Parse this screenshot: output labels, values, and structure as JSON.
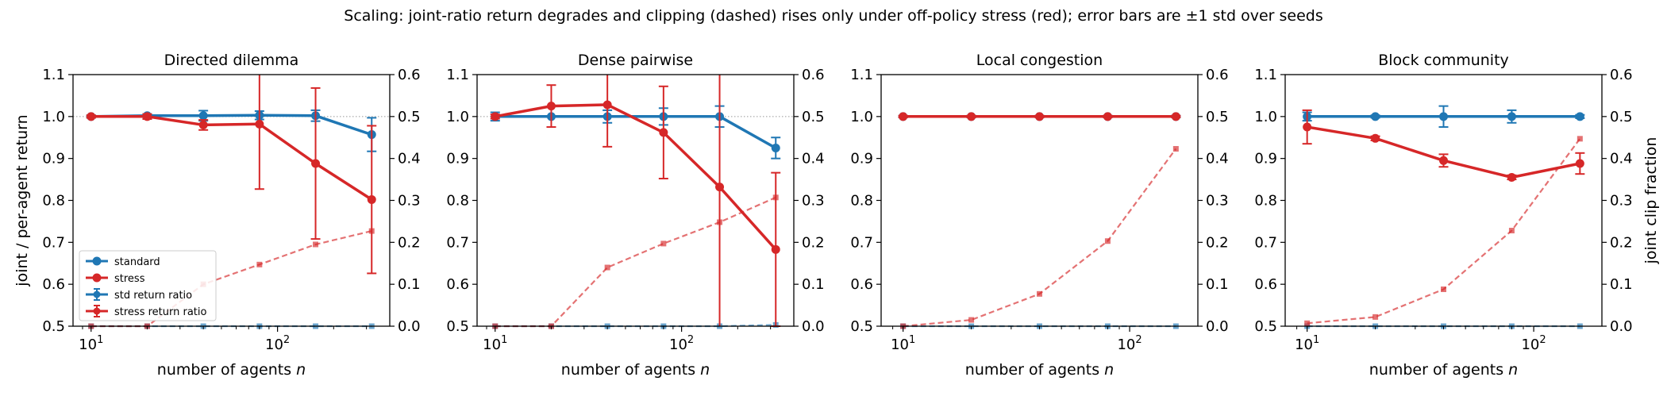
{
  "suptitle": "Scaling: joint-ratio return degrades and clipping (dashed) rises only under off-policy stress (red); error bars are ±1 std over seeds",
  "colors": {
    "standard": "#1f77b4",
    "stress": "#d62728"
  },
  "legend": {
    "placement": "lower-left (first panel)",
    "entries": [
      "standard",
      "stress",
      "std return ratio",
      "stress return ratio"
    ]
  },
  "axes_text": {
    "xlabel": "number of agents n",
    "ylabel_left": "joint / per-agent return",
    "ylabel_right": "joint clip fraction",
    "x_ticks": [
      "10^1",
      "10^2"
    ],
    "y_left_ticks": [
      "0.5",
      "0.6",
      "0.7",
      "0.8",
      "0.9",
      "1.0",
      "1.1"
    ],
    "y_right_ticks": [
      "0.0",
      "0.1",
      "0.2",
      "0.3",
      "0.4",
      "0.5",
      "0.6"
    ]
  },
  "chart_data": [
    {
      "type": "line",
      "title": "Directed dilemma",
      "xlabel": "number of agents n",
      "ylabel": "joint / per-agent return",
      "ylabel_right": "",
      "xscale": "log",
      "xlim": [
        8,
        400
      ],
      "ylim": [
        0.5,
        1.1
      ],
      "ylim_right": [
        0.0,
        0.6
      ],
      "reference_line_y": 1.0,
      "x": [
        10,
        20,
        40,
        80,
        160,
        320
      ],
      "series": [
        {
          "name": "std return ratio",
          "axis": "left",
          "style": "solid",
          "values": [
            1.0,
            1.002,
            1.002,
            1.003,
            1.002,
            0.957
          ],
          "err": [
            0.003,
            0.004,
            0.012,
            0.01,
            0.013,
            0.04
          ]
        },
        {
          "name": "stress return ratio",
          "axis": "left",
          "style": "solid",
          "values": [
            1.0,
            1.0,
            0.98,
            0.982,
            0.888,
            0.802
          ],
          "err": [
            0.003,
            0.006,
            0.012,
            0.155,
            0.18,
            0.176
          ]
        },
        {
          "axis": "right",
          "style": "dashed",
          "color": "standard",
          "values": [
            0.0,
            0.0,
            0.0,
            0.0,
            0.0,
            0.0
          ]
        },
        {
          "axis": "right",
          "style": "dashed",
          "color": "stress",
          "values": [
            0.0,
            0.0,
            0.1,
            0.147,
            0.195,
            0.227
          ]
        }
      ]
    },
    {
      "type": "line",
      "title": "Dense pairwise",
      "xlabel": "number of agents n",
      "ylabel": "",
      "ylabel_right": "",
      "xscale": "log",
      "xlim": [
        8,
        400
      ],
      "ylim": [
        0.5,
        1.1
      ],
      "ylim_right": [
        0.0,
        0.6
      ],
      "reference_line_y": 1.0,
      "x": [
        10,
        20,
        40,
        80,
        160,
        320
      ],
      "series": [
        {
          "name": "std return ratio",
          "axis": "left",
          "style": "solid",
          "values": [
            1.0,
            1.0,
            1.0,
            1.0,
            1.0,
            0.925
          ],
          "err": [
            0.01,
            0.0,
            0.015,
            0.02,
            0.025,
            0.025
          ]
        },
        {
          "name": "stress return ratio",
          "axis": "left",
          "style": "solid",
          "values": [
            1.0,
            1.025,
            1.028,
            0.962,
            0.832,
            0.683
          ],
          "err": [
            0.005,
            0.05,
            0.1,
            0.11,
            0.34,
            0.183
          ]
        },
        {
          "axis": "right",
          "style": "dashed",
          "color": "standard",
          "values": [
            0.0,
            0.0,
            0.0,
            0.0,
            0.0,
            0.003
          ]
        },
        {
          "axis": "right",
          "style": "dashed",
          "color": "stress",
          "values": [
            0.0,
            0.0,
            0.14,
            0.197,
            0.248,
            0.307
          ]
        }
      ]
    },
    {
      "type": "line",
      "title": "Local congestion",
      "xlabel": "number of agents n",
      "ylabel": "",
      "ylabel_right": "",
      "xscale": "log",
      "xlim": [
        8,
        200
      ],
      "ylim": [
        0.5,
        1.1
      ],
      "ylim_right": [
        0.0,
        0.6
      ],
      "reference_line_y": null,
      "x": [
        10,
        20,
        40,
        80,
        160
      ],
      "series": [
        {
          "name": "std return ratio",
          "axis": "left",
          "style": "solid",
          "values": [
            1.0,
            1.0,
            1.0,
            1.0,
            1.0
          ],
          "err": [
            0.002,
            0.002,
            0.002,
            0.002,
            0.002
          ]
        },
        {
          "name": "stress return ratio",
          "axis": "left",
          "style": "solid",
          "values": [
            1.0,
            1.0,
            1.0,
            1.0,
            1.0
          ],
          "err": [
            0.002,
            0.002,
            0.002,
            0.002,
            0.002
          ]
        },
        {
          "axis": "right",
          "style": "dashed",
          "color": "standard",
          "values": [
            0.0,
            0.0,
            0.0,
            0.0,
            0.0
          ]
        },
        {
          "axis": "right",
          "style": "dashed",
          "color": "stress",
          "values": [
            0.0,
            0.015,
            0.077,
            0.203,
            0.423
          ]
        }
      ]
    },
    {
      "type": "line",
      "title": "Block community",
      "xlabel": "number of agents n",
      "ylabel": "",
      "ylabel_right": "joint clip fraction",
      "xscale": "log",
      "xlim": [
        8,
        200
      ],
      "ylim": [
        0.5,
        1.1
      ],
      "ylim_right": [
        0.0,
        0.6
      ],
      "reference_line_y": null,
      "x": [
        10,
        20,
        40,
        80,
        160
      ],
      "series": [
        {
          "name": "std return ratio",
          "axis": "left",
          "style": "solid",
          "values": [
            1.0,
            1.0,
            1.0,
            1.0,
            1.0
          ],
          "err": [
            0.01,
            0.003,
            0.025,
            0.015,
            0.004
          ]
        },
        {
          "name": "stress return ratio",
          "axis": "left",
          "style": "solid",
          "values": [
            0.975,
            0.948,
            0.895,
            0.855,
            0.888
          ],
          "err": [
            0.04,
            0.005,
            0.015,
            0.005,
            0.025
          ]
        },
        {
          "axis": "right",
          "style": "dashed",
          "color": "standard",
          "values": [
            0.0,
            0.0,
            0.0,
            0.0,
            0.0
          ]
        },
        {
          "axis": "right",
          "style": "dashed",
          "color": "stress",
          "values": [
            0.007,
            0.022,
            0.088,
            0.228,
            0.447
          ]
        }
      ]
    }
  ]
}
